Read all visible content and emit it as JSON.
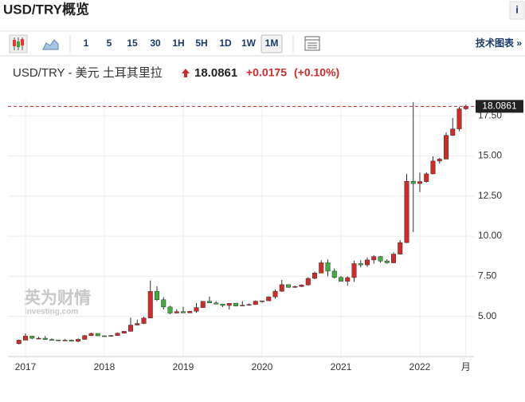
{
  "header": {
    "title": "USD/TRY概览",
    "info": "i"
  },
  "toolbar": {
    "intervals": [
      "1",
      "5",
      "15",
      "30",
      "1H",
      "5H",
      "1D",
      "1W",
      "1M"
    ],
    "selected": "1M",
    "technical_link": "技术图表 »"
  },
  "quote": {
    "name": "USD/TRY - 美元 土耳其里拉",
    "change": "+0.0175",
    "change_percent": "(+0.10%)"
  },
  "watermark": [
    "英为财情",
    "Investing.com"
  ],
  "chart_data": {
    "type": "candlestick",
    "categories": [
      null,
      "2017",
      null,
      null,
      null,
      null,
      null,
      null,
      null,
      null,
      null,
      null,
      null,
      "2018",
      null,
      null,
      null,
      null,
      null,
      null,
      null,
      null,
      null,
      null,
      null,
      "2019",
      null,
      null,
      null,
      null,
      null,
      null,
      null,
      null,
      null,
      null,
      null,
      "2020",
      null,
      null,
      null,
      null,
      null,
      null,
      null,
      null,
      null,
      null,
      null,
      "2021",
      null,
      null,
      null,
      null,
      null,
      null,
      null,
      null,
      null,
      null,
      null,
      "2022",
      null,
      null,
      null,
      null,
      null,
      null,
      "月"
    ],
    "open": [
      3.3,
      3.52,
      3.77,
      3.64,
      3.64,
      3.56,
      3.53,
      3.52,
      3.52,
      3.45,
      3.57,
      3.8,
      3.94,
      3.79,
      3.76,
      3.81,
      3.95,
      4.07,
      4.46,
      4.56,
      4.9,
      6.56,
      6.04,
      5.59,
      5.21,
      5.3,
      5.22,
      5.32,
      5.55,
      5.94,
      5.84,
      5.77,
      5.68,
      5.82,
      5.65,
      5.7,
      5.74,
      5.95,
      5.97,
      6.22,
      6.57,
      6.98,
      6.81,
      6.86,
      6.96,
      7.37,
      7.7,
      8.34,
      7.82,
      7.43,
      7.19,
      7.42,
      8.29,
      8.21,
      8.52,
      8.73,
      8.45,
      8.34,
      8.88,
      9.6,
      13.42,
      13.28,
      13.4,
      13.88,
      14.68,
      14.8,
      16.28,
      16.68,
      17.93
    ],
    "high": [
      3.55,
      3.94,
      3.8,
      3.73,
      3.78,
      3.63,
      3.55,
      3.59,
      3.57,
      3.63,
      3.84,
      3.99,
      3.95,
      3.82,
      3.84,
      3.99,
      4.1,
      4.92,
      4.8,
      4.98,
      7.24,
      6.88,
      6.2,
      5.66,
      5.45,
      5.6,
      5.34,
      5.83,
      5.95,
      6.24,
      5.95,
      5.78,
      5.83,
      5.84,
      5.96,
      5.8,
      6.0,
      5.98,
      6.25,
      6.68,
      7.27,
      7.0,
      6.92,
      7.0,
      7.44,
      7.8,
      8.5,
      8.54,
      7.99,
      7.51,
      7.5,
      8.47,
      8.5,
      8.66,
      8.82,
      8.76,
      8.56,
      8.99,
      9.75,
      13.89,
      18.36,
      13.96,
      13.98,
      14.97,
      14.87,
      16.46,
      17.37,
      18.05,
      18.19
    ],
    "low": [
      3.25,
      3.52,
      3.58,
      3.58,
      3.54,
      3.5,
      3.49,
      3.5,
      3.44,
      3.39,
      3.55,
      3.78,
      3.77,
      3.73,
      3.74,
      3.79,
      3.95,
      4.05,
      4.43,
      4.52,
      4.9,
      5.95,
      5.43,
      5.14,
      5.19,
      5.2,
      5.2,
      5.22,
      5.52,
      5.83,
      5.75,
      5.59,
      5.43,
      5.62,
      5.63,
      5.68,
      5.72,
      5.86,
      5.96,
      6.1,
      6.53,
      6.78,
      6.78,
      6.83,
      6.92,
      7.32,
      7.69,
      7.5,
      7.36,
      7.18,
      6.91,
      7.15,
      8.05,
      8.09,
      8.28,
      8.34,
      8.29,
      8.31,
      8.86,
      9.56,
      10.25,
      12.75,
      13.33,
      13.85,
      14.52,
      14.8,
      16.24,
      16.54,
      17.87
    ],
    "close": [
      3.52,
      3.77,
      3.64,
      3.64,
      3.56,
      3.53,
      3.52,
      3.52,
      3.45,
      3.57,
      3.8,
      3.94,
      3.79,
      3.76,
      3.81,
      3.95,
      4.07,
      4.46,
      4.56,
      4.9,
      6.56,
      6.04,
      5.59,
      5.21,
      5.3,
      5.22,
      5.32,
      5.55,
      5.94,
      5.84,
      5.77,
      5.68,
      5.82,
      5.65,
      5.7,
      5.74,
      5.95,
      5.97,
      6.22,
      6.57,
      6.98,
      6.81,
      6.86,
      6.96,
      7.37,
      7.7,
      8.34,
      7.82,
      7.43,
      7.19,
      7.42,
      8.29,
      8.21,
      8.52,
      8.73,
      8.45,
      8.34,
      8.88,
      9.6,
      13.42,
      13.28,
      13.4,
      13.88,
      14.68,
      14.8,
      16.28,
      16.68,
      17.93,
      18.0861
    ],
    "last_price": 18.0861,
    "up_color": "#d12a2a",
    "down_color": "#3fae3f",
    "last_price_color": "#c62828",
    "ylim": [
      2.5,
      18.5
    ],
    "yticks": [
      {
        "value": 5,
        "label": "5.00"
      },
      {
        "value": 7.5,
        "label": "7.50"
      },
      {
        "value": 10,
        "label": "10.00"
      },
      {
        "value": 12.5,
        "label": "12.50"
      },
      {
        "value": 15,
        "label": "15.00"
      },
      {
        "value": 17.5,
        "label": "17.50"
      }
    ],
    "grid": true
  }
}
